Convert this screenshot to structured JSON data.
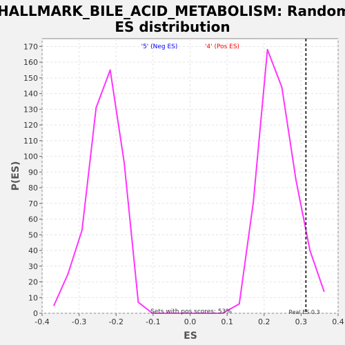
{
  "chart_data": {
    "type": "line",
    "title_line1": "HALLMARK_BILE_ACID_METABOLISM: Random",
    "title_line2": "ES distribution",
    "xlabel": "ES",
    "ylabel": "P(ES)",
    "xlim": [
      -0.4,
      0.4
    ],
    "ylim": [
      0,
      175
    ],
    "xticks": [
      "-0.4",
      "-0.3",
      "-0.2",
      "-0.1",
      "0.0",
      "0.1",
      "0.2",
      "0.3",
      "0.4"
    ],
    "xtick_values": [
      -0.4,
      -0.3,
      -0.2,
      -0.1,
      0.0,
      0.1,
      0.2,
      0.3,
      0.4
    ],
    "yticks": [
      "0",
      "10",
      "20",
      "30",
      "40",
      "50",
      "60",
      "70",
      "80",
      "90",
      "100",
      "110",
      "120",
      "130",
      "140",
      "150",
      "160",
      "170"
    ],
    "ytick_values": [
      0,
      10,
      20,
      30,
      40,
      50,
      60,
      70,
      80,
      90,
      100,
      110,
      120,
      130,
      140,
      150,
      160,
      170
    ],
    "grid": true,
    "series": [
      {
        "color": "#ff33ff",
        "x": [
          -0.368,
          -0.33,
          -0.292,
          -0.254,
          -0.216,
          -0.178,
          -0.14,
          -0.102,
          -0.064,
          -0.026,
          0.012,
          0.05,
          0.088,
          0.133,
          0.171,
          0.209,
          0.248,
          0.286,
          0.324,
          0.362
        ],
        "y": [
          5,
          25,
          53,
          131,
          155,
          96,
          7,
          0,
          0,
          0,
          0,
          0,
          0,
          6,
          71,
          168,
          144,
          85,
          40,
          14
        ]
      }
    ],
    "legend": [
      {
        "label": "'5' (Neg ES)",
        "color": "#0000ff"
      },
      {
        "label": "'4' (Pos ES)",
        "color": "#ff0000"
      }
    ],
    "annotations": {
      "pos_scores": "Sets with pos scores: 53%",
      "real_es_label": "Real ES 0.3",
      "real_es_value": 0.313
    }
  }
}
